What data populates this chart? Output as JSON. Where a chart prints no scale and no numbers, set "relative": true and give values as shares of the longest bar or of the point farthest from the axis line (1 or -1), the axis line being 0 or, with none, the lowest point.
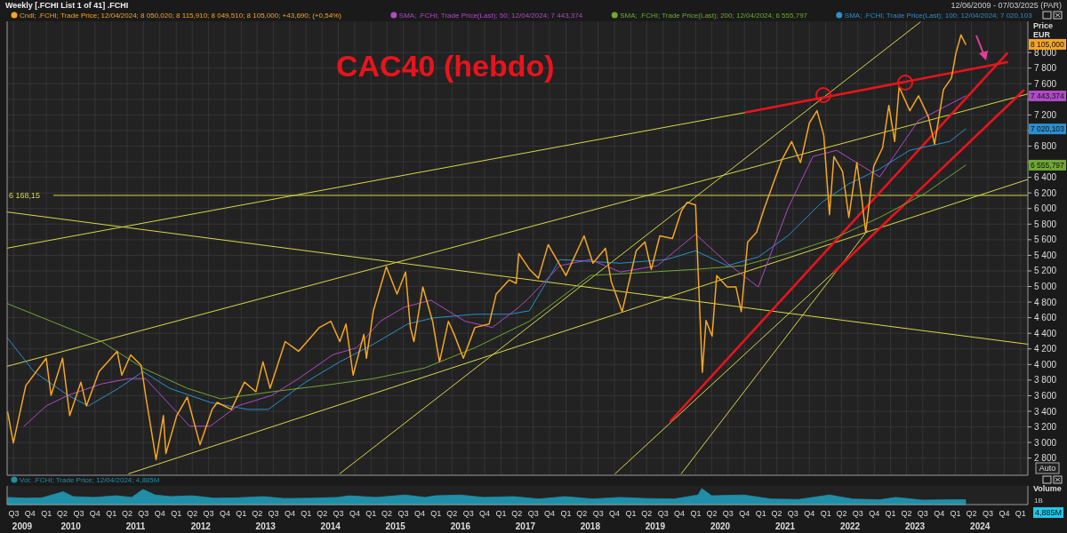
{
  "chart_data": [
    {
      "type": "line",
      "title": "CAC40 (hebdo)",
      "subtitle": "Weekly [.FCHI List 1 of 41] .FCHI",
      "ylabel": "Price EUR",
      "xlim": [
        "2009-07-09",
        "2025-03-28"
      ],
      "ylim": [
        2580,
        8400
      ],
      "xticks": [
        {
          "value": "2009-08-15",
          "label": null
        },
        {
          "value": "2009-11-15",
          "label": null
        },
        {
          "value": "2010-02-15",
          "label": null
        },
        {
          "value": "2010-05-15",
          "label": null
        },
        {
          "value": "2010-08-15",
          "label": null
        },
        {
          "value": "2010-11-15",
          "label": null
        },
        {
          "value": "2011-02-15",
          "label": null
        },
        {
          "value": "2011-05-15",
          "label": null
        },
        {
          "value": "2011-08-15",
          "label": null
        },
        {
          "value": "2011-11-15",
          "label": null
        },
        {
          "value": "2012-02-15",
          "label": null
        },
        {
          "value": "2012-05-15",
          "label": null
        },
        {
          "value": "2012-08-15",
          "label": null
        },
        {
          "value": "2012-11-15",
          "label": null
        },
        {
          "value": "2013-02-15",
          "label": null
        },
        {
          "value": "2013-05-15",
          "label": null
        },
        {
          "value": "2013-08-15",
          "label": null
        },
        {
          "value": "2013-11-15",
          "label": null
        },
        {
          "value": "2014-02-15",
          "label": null
        },
        {
          "value": "2014-05-15",
          "label": null
        },
        {
          "value": "2014-08-15",
          "label": null
        },
        {
          "value": "2014-11-15",
          "label": null
        },
        {
          "value": "2015-02-15",
          "label": null
        },
        {
          "value": "2015-05-15",
          "label": null
        },
        {
          "value": "2015-08-15",
          "label": null
        },
        {
          "value": "2015-11-15",
          "label": null
        },
        {
          "value": "2016-02-15",
          "label": null
        },
        {
          "value": "2016-05-15",
          "label": null
        },
        {
          "value": "2016-08-15",
          "label": null
        },
        {
          "value": "2016-11-15",
          "label": null
        },
        {
          "value": "2017-02-15",
          "label": null
        },
        {
          "value": "2017-05-15",
          "label": null
        },
        {
          "value": "2017-08-15",
          "label": null
        },
        {
          "value": "2017-11-15",
          "label": null
        },
        {
          "value": "2018-02-15",
          "label": null
        },
        {
          "value": "2018-05-15",
          "label": null
        },
        {
          "value": "2018-08-15",
          "label": null
        },
        {
          "value": "2018-11-15",
          "label": null
        },
        {
          "value": "2019-02-15",
          "label": null
        },
        {
          "value": "2019-05-15",
          "label": null
        },
        {
          "value": "2019-08-15",
          "label": null
        },
        {
          "value": "2019-11-15",
          "label": null
        },
        {
          "value": "2020-02-15",
          "label": null
        },
        {
          "value": "2020-05-15",
          "label": null
        },
        {
          "value": "2020-08-15",
          "label": null
        },
        {
          "value": "2020-11-15",
          "label": null
        },
        {
          "value": "2021-02-15",
          "label": null
        },
        {
          "value": "2021-05-15",
          "label": null
        },
        {
          "value": "2021-08-15",
          "label": null
        },
        {
          "value": "2021-11-15",
          "label": null
        },
        {
          "value": "2022-02-15",
          "label": null
        },
        {
          "value": "2022-05-15",
          "label": null
        },
        {
          "value": "2022-08-15",
          "label": null
        },
        {
          "value": "2022-11-15",
          "label": null
        },
        {
          "value": "2023-02-15",
          "label": null
        },
        {
          "value": "2023-05-15",
          "label": null
        },
        {
          "value": "2023-08-15",
          "label": null
        },
        {
          "value": "2023-11-15",
          "label": null
        },
        {
          "value": "2024-02-15",
          "label": null
        },
        {
          "value": "2024-05-15",
          "label": null
        },
        {
          "value": "2024-08-15",
          "label": null
        },
        {
          "value": "2024-11-15",
          "label": null
        },
        {
          "value": "2025-02-15",
          "label": null
        }
      ],
      "yticks": [
        {
          "value": 2800,
          "label": "2 800"
        },
        {
          "value": 3000,
          "label": "3 000"
        },
        {
          "value": 3200,
          "label": "3 200"
        },
        {
          "value": 3400,
          "label": "3 400"
        },
        {
          "value": 3600,
          "label": "3 600"
        },
        {
          "value": 3800,
          "label": "3 800"
        },
        {
          "value": 4000,
          "label": "4 000"
        },
        {
          "value": 4200,
          "label": "4 200"
        },
        {
          "value": 4400,
          "label": "4 400"
        },
        {
          "value": 4600,
          "label": "4 600"
        },
        {
          "value": 4800,
          "label": "4 800"
        },
        {
          "value": 5000,
          "label": "5 000"
        },
        {
          "value": 5200,
          "label": "5 200"
        },
        {
          "value": 5400,
          "label": "5 400"
        },
        {
          "value": 5600,
          "label": "5 600"
        },
        {
          "value": 5800,
          "label": "5 800"
        },
        {
          "value": 6000,
          "label": "6 000"
        },
        {
          "value": 6200,
          "label": "6 200"
        },
        {
          "value": 6400,
          "label": "6 400"
        },
        {
          "value": 6600,
          "label": null
        },
        {
          "value": 6800,
          "label": "6 800"
        },
        {
          "value": 7000,
          "label": null
        },
        {
          "value": 7200,
          "label": "7 200"
        },
        {
          "value": 7400,
          "label": null
        },
        {
          "value": 7600,
          "label": "7 600"
        },
        {
          "value": 7800,
          "label": "7 800"
        },
        {
          "value": 8000,
          "label": "8 000"
        }
      ],
      "tick_labels": "y",
      "grid": true,
      "legend": "top left",
      "ref_lines": [
        {
          "axis": "y",
          "value": 6168.15,
          "label": "6 168,15",
          "color": "#d8d84a"
        }
      ],
      "annotations": [
        "8 105,000",
        "7 443,374",
        "6 555,797",
        "7 020,103",
        "12/06/2009 - 07/03/2025 (PAR)",
        "Auto"
      ],
      "series": [
        {
          "name": "Cndl; .FCHI; Trade Price; 12/04/2024; 8 050,020; 8 115,910; 8 049,510; 8 105,000; +43,690; (+0,54%)",
          "color": "#f5a623",
          "x": [
            "2009-07-12",
            "2009-08-13",
            "2009-10-22",
            "2010-02-14",
            "2010-03-13",
            "2010-05-17",
            "2010-06-26",
            "2010-08-28",
            "2010-09-28",
            "2010-12-08",
            "2011-03-20",
            "2011-04-15",
            "2011-06-04",
            "2011-08-02",
            "2011-08-27",
            "2011-10-25",
            "2011-12-05",
            "2011-12-19",
            "2012-02-18",
            "2012-04-17",
            "2012-06-28",
            "2012-09-04",
            "2012-10-03",
            "2012-12-21",
            "2013-03-05",
            "2013-05-08",
            "2013-06-17",
            "2013-07-27",
            "2013-10-20",
            "2014-01-03",
            "2014-05-01",
            "2014-07-04",
            "2014-08-23",
            "2014-09-27",
            "2014-11-06",
            "2015-01-05",
            "2015-01-20",
            "2015-02-28",
            "2015-05-12",
            "2015-07-11",
            "2015-08-28",
            "2015-09-24",
            "2015-10-14",
            "2015-12-03",
            "2016-01-27",
            "2016-03-06",
            "2016-04-25",
            "2016-05-28",
            "2016-07-18",
            "2016-09-21",
            "2016-12-10",
            "2017-01-19",
            "2017-04-02",
            "2017-05-11",
            "2017-05-26",
            "2017-07-25",
            "2017-09-13",
            "2017-11-07",
            "2018-02-15",
            "2018-05-28",
            "2018-07-17",
            "2018-09-25",
            "2018-10-28",
            "2018-12-28",
            "2019-03-17",
            "2019-05-05",
            "2019-06-10",
            "2019-07-28",
            "2019-10-07",
            "2019-11-26",
            "2019-12-28",
            "2020-02-14",
            "2020-02-28",
            "2020-03-23",
            "2020-04-13",
            "2020-05-17",
            "2020-06-12",
            "2020-08-10",
            "2020-09-28",
            "2020-10-28",
            "2020-12-03",
            "2021-01-22",
            "2021-03-06",
            "2021-04-25",
            "2021-06-13",
            "2021-08-07",
            "2021-09-26",
            "2021-11-15",
            "2021-12-28",
            "2022-02-04",
            "2022-03-08",
            "2022-04-02",
            "2022-05-21",
            "2022-06-25",
            "2022-08-09",
            "2022-09-04",
            "2022-09-28",
            "2022-11-12",
            "2023-01-01",
            "2023-02-05",
            "2023-03-10",
            "2023-04-04",
            "2023-06-03",
            "2023-07-22",
            "2023-09-16",
            "2023-10-20",
            "2023-12-09",
            "2024-01-23",
            "2024-02-17",
            "2024-03-17",
            "2024-04-12"
          ],
          "values": [
            3390,
            2994,
            3729,
            4080,
            3605,
            4080,
            3345,
            3774,
            3469,
            3910,
            4170,
            3864,
            4124,
            3989,
            3605,
            2780,
            3345,
            2859,
            3345,
            3582,
            2972,
            3424,
            3514,
            3424,
            3774,
            3650,
            4034,
            3695,
            4294,
            4170,
            4475,
            4554,
            4294,
            4520,
            3864,
            4384,
            4080,
            4689,
            5254,
            4904,
            5186,
            4475,
            4294,
            4994,
            4554,
            4034,
            4554,
            4384,
            4080,
            4475,
            4520,
            4904,
            5085,
            5040,
            5424,
            5220,
            5107,
            5537,
            5141,
            5650,
            5299,
            5491,
            5062,
            4678,
            5458,
            5571,
            5220,
            5650,
            5616,
            5966,
            6079,
            6045,
            5220,
            3898,
            4565,
            4362,
            5141,
            4994,
            4994,
            4678,
            5571,
            5695,
            6000,
            6316,
            6621,
            6859,
            6588,
            7096,
            7254,
            6938,
            5921,
            6667,
            6475,
            5887,
            6588,
            6158,
            5695,
            6542,
            6780,
            7322,
            6859,
            7559,
            7254,
            7446,
            7175,
            6825,
            7525,
            7672,
            7989,
            8226,
            8105
          ]
        },
        {
          "name": "SMA; .FCHI; Trade Price(Last); 50; 12/04/2024; 7 443,374",
          "color": "#b04ac8",
          "x": [
            "2009-10-12",
            "2010-02-14",
            "2010-06-16",
            "2010-12-22",
            "2011-05-24",
            "2011-08-27",
            "2012-05-01",
            "2012-08-24",
            "2013-01-25",
            "2013-08-06",
            "2014-01-03",
            "2014-07-14",
            "2014-11-26",
            "2015-04-08",
            "2015-08-20",
            "2016-01-17",
            "2016-07-28",
            "2016-12-28",
            "2017-05-26",
            "2017-07-24",
            "2018-01-11",
            "2018-07-02",
            "2018-12-18",
            "2019-07-14",
            "2020-02-14",
            "2020-08-10",
            "2021-02-01",
            "2021-07-17",
            "2021-12-05",
            "2022-04-17",
            "2022-12-16",
            "2023-07-22",
            "2024-04-12"
          ],
          "values": [
            3209,
            3469,
            3605,
            3751,
            3819,
            3819,
            3209,
            3209,
            3469,
            3605,
            3819,
            4124,
            4215,
            4554,
            4734,
            4825,
            4554,
            4475,
            4734,
            4859,
            5266,
            5345,
            5186,
            5266,
            5672,
            5299,
            4994,
            6000,
            6667,
            6746,
            6406,
            7130,
            7443.374
          ]
        },
        {
          "name": "SMA; .FCHI; Trade Price(Last); 200; 12/04/2024; 6 555,797",
          "color": "#6fa832",
          "x": [
            "2009-07-11",
            "2010-12-22",
            "2011-08-12",
            "2012-04-17",
            "2012-10-22",
            "2013-08-06",
            "2014-05-15",
            "2015-02-28",
            "2015-12-13",
            "2016-09-21",
            "2017-07-24",
            "2018-07-02",
            "2019-06-09",
            "2020-02-14",
            "2020-11-03",
            "2021-07-17",
            "2022-04-02",
            "2022-12-16",
            "2023-08-26",
            "2024-04-12"
          ],
          "values": [
            4780,
            4294,
            3955,
            3695,
            3559,
            3650,
            3729,
            3819,
            3955,
            4215,
            4554,
            5141,
            5186,
            5220,
            5266,
            5424,
            5616,
            5887,
            6192,
            6555.797
          ]
        },
        {
          "name": "SMA; .FCHI; Trade Price(Last); 100; 12/04/2024; 7 020,103",
          "color": "#2a8fd0",
          "x": [
            "2009-07-11",
            "2009-12-06",
            "2010-06-16",
            "2010-10-09",
            "2011-03-28",
            "2011-08-12",
            "2012-01-09",
            "2012-08-24",
            "2013-03-24",
            "2013-07-17",
            "2014-02-12",
            "2014-08-23",
            "2015-02-28",
            "2015-09-09",
            "2016-02-06",
            "2016-09-21",
            "2017-04-02",
            "2017-07-24",
            "2018-01-11",
            "2018-12-18",
            "2019-09-02",
            "2020-02-14",
            "2020-08-10",
            "2021-02-01",
            "2021-07-17",
            "2022-01-24",
            "2022-06-25",
            "2022-12-16",
            "2023-06-02",
            "2024-01-13",
            "2024-04-12"
          ],
          "values": [
            4339,
            3910,
            3605,
            3469,
            3695,
            3910,
            3695,
            3514,
            3424,
            3424,
            3774,
            4034,
            4260,
            4520,
            4599,
            4644,
            4644,
            4689,
            5345,
            5299,
            5345,
            5458,
            5266,
            5379,
            5650,
            6079,
            6316,
            6508,
            6746,
            6859,
            7020.103
          ]
        },
        {
          "color": "#d8d84a",
          "x": [
            "2009-07-09",
            "2020-11-23"
          ],
          "values": [
            5492,
            7232
          ]
        },
        {
          "color": "#d8d84a",
          "x": [
            "2009-07-09",
            "2025-03-28"
          ],
          "values": [
            3977,
            7469
          ]
        },
        {
          "color": "#d8d84a",
          "x": [
            "2009-07-09",
            "2025-03-28"
          ],
          "values": [
            5955,
            4260
          ]
        },
        {
          "color": "#d8d84a",
          "x": [
            "2011-05-24",
            "2025-03-28"
          ],
          "values": [
            2600,
            6373
          ]
        },
        {
          "color": "#d8d84a",
          "x": [
            "2014-08-23",
            "2023-08-01"
          ],
          "values": [
            2600,
            8390
          ]
        },
        {
          "color": "#d8d84a",
          "x": [
            "2018-11-19",
            "2022-04-02"
          ],
          "values": [
            2600,
            5186
          ]
        },
        {
          "color": "#d8d84a",
          "x": [
            "2019-11-26",
            "2022-10-08"
          ],
          "values": [
            2600,
            5718
          ]
        },
        {
          "color": "#e8141c",
          "x": [
            "2020-11-23",
            "2024-12-01"
          ],
          "values": [
            7232,
            7876
          ]
        },
        {
          "color": "#e8141c",
          "x": [
            "2019-09-27",
            "2024-12-01"
          ],
          "values": [
            3277,
            7989
          ]
        },
        {
          "color": "#e8141c",
          "x": [
            "2022-04-02",
            "2025-03-04"
          ],
          "values": [
            5186,
            7514
          ]
        }
      ]
    },
    {
      "type": "area",
      "relative": true,
      "ylabel": "Volume",
      "legend": "top left",
      "tick_labels": "x",
      "xlim": [
        "2009-07-09",
        "2025-03-28"
      ],
      "xticks": [
        {
          "value": "2009-08-15",
          "label": "Q3"
        },
        {
          "value": "2009-11-15",
          "label": "Q4"
        },
        {
          "value": "2010-02-15",
          "label": "Q1"
        },
        {
          "value": "2010-05-15",
          "label": "Q2"
        },
        {
          "value": "2010-08-15",
          "label": "Q3"
        },
        {
          "value": "2010-11-15",
          "label": "Q4"
        },
        {
          "value": "2011-02-15",
          "label": "Q1"
        },
        {
          "value": "2011-05-15",
          "label": "Q2"
        },
        {
          "value": "2011-08-15",
          "label": "Q3"
        },
        {
          "value": "2011-11-15",
          "label": "Q4"
        },
        {
          "value": "2012-02-15",
          "label": "Q1"
        },
        {
          "value": "2012-05-15",
          "label": "Q2"
        },
        {
          "value": "2012-08-15",
          "label": "Q3"
        },
        {
          "value": "2012-11-15",
          "label": "Q4"
        },
        {
          "value": "2013-02-15",
          "label": "Q1"
        },
        {
          "value": "2013-05-15",
          "label": "Q2"
        },
        {
          "value": "2013-08-15",
          "label": "Q3"
        },
        {
          "value": "2013-11-15",
          "label": "Q4"
        },
        {
          "value": "2014-02-15",
          "label": "Q1"
        },
        {
          "value": "2014-05-15",
          "label": "Q2"
        },
        {
          "value": "2014-08-15",
          "label": "Q3"
        },
        {
          "value": "2014-11-15",
          "label": "Q4"
        },
        {
          "value": "2015-02-15",
          "label": "Q1"
        },
        {
          "value": "2015-05-15",
          "label": "Q2"
        },
        {
          "value": "2015-08-15",
          "label": "Q3"
        },
        {
          "value": "2015-11-15",
          "label": "Q4"
        },
        {
          "value": "2016-02-15",
          "label": "Q1"
        },
        {
          "value": "2016-05-15",
          "label": "Q2"
        },
        {
          "value": "2016-08-15",
          "label": "Q3"
        },
        {
          "value": "2016-11-15",
          "label": "Q4"
        },
        {
          "value": "2017-02-15",
          "label": "Q1"
        },
        {
          "value": "2017-05-15",
          "label": "Q2"
        },
        {
          "value": "2017-08-15",
          "label": "Q3"
        },
        {
          "value": "2017-11-15",
          "label": "Q4"
        },
        {
          "value": "2018-02-15",
          "label": "Q1"
        },
        {
          "value": "2018-05-15",
          "label": "Q2"
        },
        {
          "value": "2018-08-15",
          "label": "Q3"
        },
        {
          "value": "2018-11-15",
          "label": "Q4"
        },
        {
          "value": "2019-02-15",
          "label": "Q1"
        },
        {
          "value": "2019-05-15",
          "label": "Q2"
        },
        {
          "value": "2019-08-15",
          "label": "Q3"
        },
        {
          "value": "2019-11-15",
          "label": "Q4"
        },
        {
          "value": "2020-02-15",
          "label": "Q1"
        },
        {
          "value": "2020-05-15",
          "label": "Q2"
        },
        {
          "value": "2020-08-15",
          "label": "Q3"
        },
        {
          "value": "2020-11-15",
          "label": "Q4"
        },
        {
          "value": "2021-02-15",
          "label": "Q1"
        },
        {
          "value": "2021-05-15",
          "label": "Q2"
        },
        {
          "value": "2021-08-15",
          "label": "Q3"
        },
        {
          "value": "2021-11-15",
          "label": "Q4"
        },
        {
          "value": "2022-02-15",
          "label": "Q1"
        },
        {
          "value": "2022-05-15",
          "label": "Q2"
        },
        {
          "value": "2022-08-15",
          "label": "Q3"
        },
        {
          "value": "2022-11-15",
          "label": "Q4"
        },
        {
          "value": "2023-02-15",
          "label": "Q1"
        },
        {
          "value": "2023-05-15",
          "label": "Q2"
        },
        {
          "value": "2023-08-15",
          "label": "Q3"
        },
        {
          "value": "2023-11-15",
          "label": "Q4"
        },
        {
          "value": "2024-02-15",
          "label": "Q1"
        },
        {
          "value": "2024-05-15",
          "label": "Q2"
        },
        {
          "value": "2024-08-15",
          "label": "Q3"
        },
        {
          "value": "2024-11-15",
          "label": "Q4"
        },
        {
          "value": "2025-02-15",
          "label": "Q1"
        }
      ],
      "x2lim": [
        "2009-07-09",
        "2025-03-28"
      ],
      "x2ticks": [
        {
          "value": "2009-10-02",
          "label": "2009"
        },
        {
          "value": "2010-07-02",
          "label": "2010"
        },
        {
          "value": "2011-07-02",
          "label": "2011"
        },
        {
          "value": "2012-07-02",
          "label": "2012"
        },
        {
          "value": "2013-07-02",
          "label": "2013"
        },
        {
          "value": "2014-07-02",
          "label": "2014"
        },
        {
          "value": "2015-07-02",
          "label": "2015"
        },
        {
          "value": "2016-07-02",
          "label": "2016"
        },
        {
          "value": "2017-07-02",
          "label": "2017"
        },
        {
          "value": "2018-07-02",
          "label": "2018"
        },
        {
          "value": "2019-07-02",
          "label": "2019"
        },
        {
          "value": "2020-07-02",
          "label": "2020"
        },
        {
          "value": "2021-07-02",
          "label": "2021"
        },
        {
          "value": "2022-07-02",
          "label": "2022"
        },
        {
          "value": "2023-07-02",
          "label": "2023"
        },
        {
          "value": "2024-07-02",
          "label": "2024"
        }
      ],
      "annotations": [
        "1B",
        "4,885M"
      ],
      "x": [
        "2009-07-12",
        "2009-10-15",
        "2010-01-20",
        "2010-05-20",
        "2010-07-15",
        "2010-11-10",
        "2011-03-15",
        "2011-06-10",
        "2011-08-12",
        "2011-10-20",
        "2012-01-15",
        "2012-05-15",
        "2012-09-15",
        "2013-01-15",
        "2013-06-20",
        "2013-10-15",
        "2014-03-15",
        "2014-08-10",
        "2014-10-15",
        "2015-03-15",
        "2015-08-25",
        "2015-12-15",
        "2016-02-10",
        "2016-06-28",
        "2016-11-10",
        "2017-04-25",
        "2017-09-15",
        "2018-02-10",
        "2018-07-15",
        "2018-12-15",
        "2019-05-15",
        "2019-10-15",
        "2020-02-28",
        "2020-03-20",
        "2020-05-15",
        "2020-11-10",
        "2021-04-15",
        "2021-09-15",
        "2022-03-08",
        "2022-07-15",
        "2022-12-15",
        "2023-03-15",
        "2023-08-15",
        "2024-01-15",
        "2024-04-12"
      ],
      "series": [
        {
          "name": "Vol; .FCHI; Trade Price; 12/04/2024; 4,885M",
          "color": "#1f8fa8",
          "values": [
            0.45,
            0.4,
            0.42,
            0.8,
            0.5,
            0.45,
            0.55,
            0.45,
            0.95,
            0.6,
            0.5,
            0.55,
            0.4,
            0.42,
            0.5,
            0.38,
            0.4,
            0.45,
            0.55,
            0.45,
            0.6,
            0.45,
            0.55,
            0.6,
            0.45,
            0.5,
            0.35,
            0.5,
            0.35,
            0.45,
            0.38,
            0.35,
            0.6,
            1.0,
            0.55,
            0.6,
            0.35,
            0.32,
            0.6,
            0.35,
            0.3,
            0.45,
            0.28,
            0.3,
            0.3
          ]
        }
      ]
    }
  ]
}
